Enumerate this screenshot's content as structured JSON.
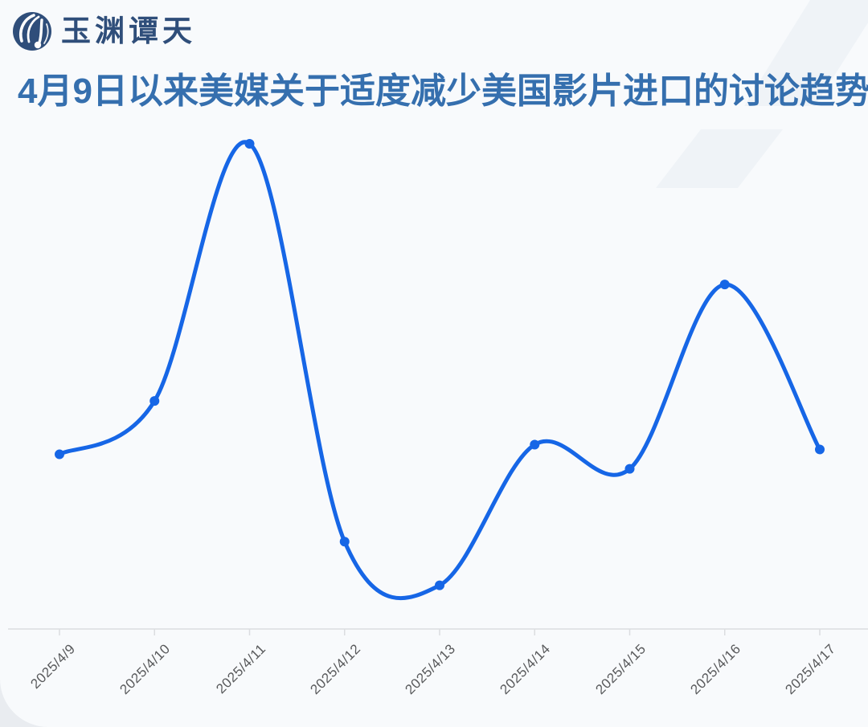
{
  "header": {
    "brand": "玉渊谭天",
    "title": "4月9日以来美媒关于适度减少美国影片进口的讨论趋势"
  },
  "colors": {
    "accent_line": "#1666E6",
    "title_blue": "#356FAE",
    "brand_navy": "#2F4E7A",
    "axis_label": "#58595B",
    "axis_line": "#DBDDE0",
    "stripe": "#EFF3F7",
    "card_bg": "#F8FAFC",
    "page_bg": "#E9ECF0"
  },
  "chart_data": {
    "type": "line",
    "title": "4月9日以来美媒关于适度减少美国影片进口的讨论趋势",
    "categories": [
      "2025/4/9",
      "2025/4/10",
      "2025/4/11",
      "2025/4/12",
      "2025/4/13",
      "2025/4/14",
      "2025/4/15",
      "2025/4/16",
      "2025/4/17"
    ],
    "values": [
      36,
      47,
      100,
      18,
      9,
      38,
      33,
      71,
      37
    ],
    "xlabel": "",
    "ylabel": "",
    "ylim": [
      0,
      105
    ],
    "y_axis_visible": false,
    "grid": false,
    "legend": false,
    "smooth": true,
    "point_markers": true,
    "x_label_rotation_deg": 45
  }
}
